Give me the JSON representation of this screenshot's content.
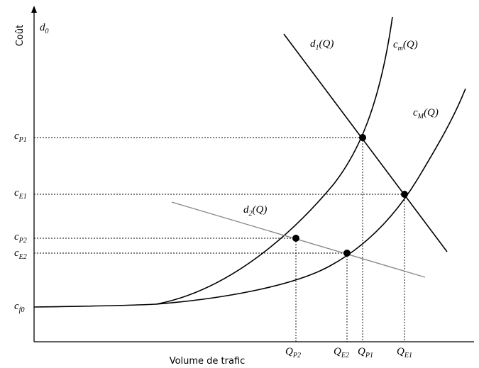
{
  "axes": {
    "y_title": "Coût",
    "x_title": "Volume de trafic",
    "d0_label": {
      "main": "d",
      "sub": "0"
    }
  },
  "curves": {
    "d1": {
      "main": "d",
      "sub": "1",
      "tail": "(Q)"
    },
    "cm": {
      "main": "c",
      "sub": "m",
      "tail": "(Q)"
    },
    "cM": {
      "main": "c",
      "sub": "M",
      "tail": "(Q)"
    },
    "d2": {
      "main": "d",
      "sub": "2",
      "tail": "(Q)"
    }
  },
  "y_ticks": {
    "cP1": {
      "main": "c",
      "sub": "P1"
    },
    "cE1": {
      "main": "c",
      "sub": "E1"
    },
    "cP2": {
      "main": "c",
      "sub": "P2"
    },
    "cE2": {
      "main": "c",
      "sub": "E2"
    },
    "cf0": {
      "main": "c",
      "sub": "f0"
    }
  },
  "x_ticks": {
    "QP2": {
      "main": "Q",
      "sub": "P2"
    },
    "QE2": {
      "main": "Q",
      "sub": "E2"
    },
    "QP1": {
      "main": "Q",
      "sub": "P1"
    },
    "QE1": {
      "main": "Q",
      "sub": "E1"
    }
  }
}
